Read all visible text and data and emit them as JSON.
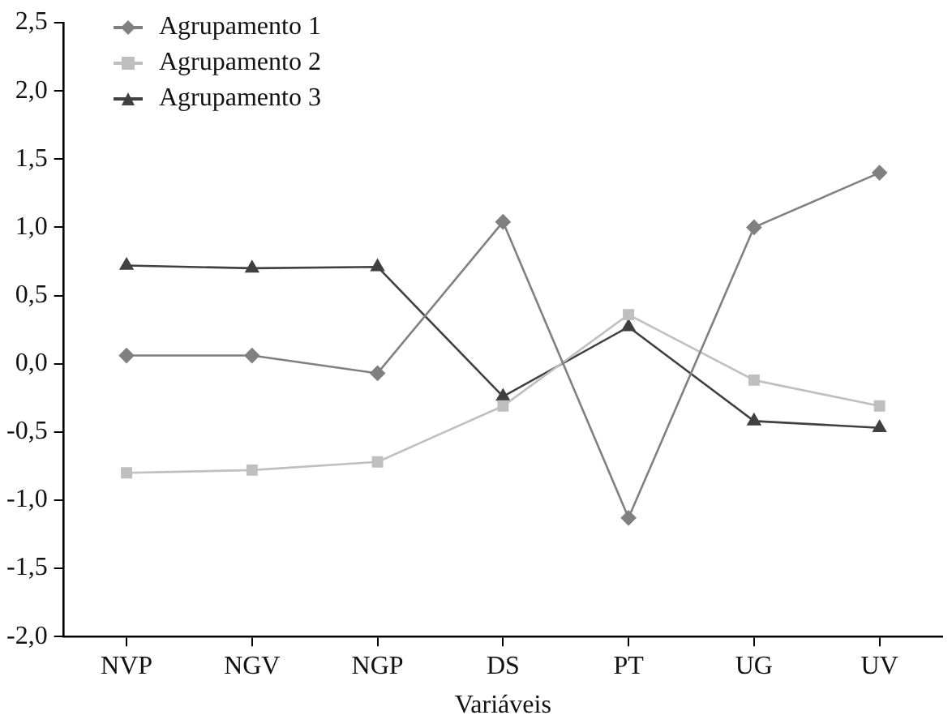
{
  "chart_data": {
    "type": "line",
    "xlabel": "Variáveis",
    "categories": [
      "NVP",
      "NGV",
      "NGP",
      "DS",
      "PT",
      "UG",
      "UV"
    ],
    "series": [
      {
        "name": "Agrupamento 1",
        "color": "#808080",
        "marker": "diamond",
        "values": [
          0.06,
          0.06,
          -0.07,
          1.04,
          -1.13,
          1.0,
          1.4
        ]
      },
      {
        "name": "Agrupamento 2",
        "color": "#bfbfbf",
        "marker": "square",
        "values": [
          -0.8,
          -0.78,
          -0.72,
          -0.31,
          0.36,
          -0.12,
          -0.31
        ]
      },
      {
        "name": "Agrupamento 3",
        "color": "#404040",
        "marker": "triangle",
        "values": [
          0.72,
          0.7,
          0.71,
          -0.24,
          0.27,
          -0.42,
          -0.47
        ]
      }
    ],
    "ylim": [
      -2.0,
      2.5
    ],
    "yticks": [
      {
        "value": -2.0,
        "label": "-2,0"
      },
      {
        "value": -1.5,
        "label": "-1,5"
      },
      {
        "value": -1.0,
        "label": "-1,0"
      },
      {
        "value": -0.5,
        "label": "-0,5"
      },
      {
        "value": 0,
        "label": "0,0"
      },
      {
        "value": 0.5,
        "label": "0,5"
      },
      {
        "value": 1.0,
        "label": "1,0"
      },
      {
        "value": 1.5,
        "label": "1,5"
      },
      {
        "value": 2.0,
        "label": "2,0"
      },
      {
        "value": 2.5,
        "label": "2,5"
      }
    ],
    "grid": false,
    "legend": "top left",
    "line_style": "solid"
  }
}
